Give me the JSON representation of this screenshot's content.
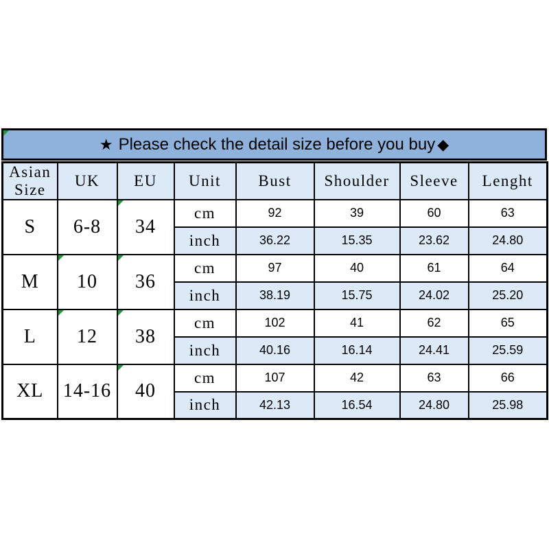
{
  "banner": {
    "star": "★",
    "text": "Please check the detail size before you buy",
    "diamond": "◆"
  },
  "colors": {
    "banner_bg": "#8FB2DC",
    "header_bg": "#DCE9F6",
    "alt_row_bg": "#DCE9F6",
    "border": "#000000",
    "excel_mark_green": "#1E9A3C",
    "text": "#000000",
    "page_bg": "#FFFFFF"
  },
  "chart_data": {
    "type": "table",
    "title": "★ Please check the detail size before you buy◆",
    "headers": [
      "Asian Size",
      "UK",
      "EU",
      "Unit",
      "Bust",
      "Shoulder",
      "Sleeve",
      "Lenght"
    ],
    "units": {
      "cm": "cm",
      "inch": "inch"
    },
    "rows": [
      {
        "size": "S",
        "uk": "6-8",
        "eu": "34",
        "cm": {
          "bust": "92",
          "shoulder": "39",
          "sleeve": "60",
          "length": "63"
        },
        "inch": {
          "bust": "36.22",
          "shoulder": "15.35",
          "sleeve": "23.62",
          "length": "24.80"
        }
      },
      {
        "size": "M",
        "uk": "10",
        "eu": "36",
        "cm": {
          "bust": "97",
          "shoulder": "40",
          "sleeve": "61",
          "length": "64"
        },
        "inch": {
          "bust": "38.19",
          "shoulder": "15.75",
          "sleeve": "24.02",
          "length": "25.20"
        }
      },
      {
        "size": "L",
        "uk": "12",
        "eu": "38",
        "cm": {
          "bust": "102",
          "shoulder": "41",
          "sleeve": "62",
          "length": "65"
        },
        "inch": {
          "bust": "40.16",
          "shoulder": "16.14",
          "sleeve": "24.41",
          "length": "25.59"
        }
      },
      {
        "size": "XL",
        "uk": "14-16",
        "eu": "40",
        "cm": {
          "bust": "107",
          "shoulder": "42",
          "sleeve": "63",
          "length": "66"
        },
        "inch": {
          "bust": "42.13",
          "shoulder": "16.54",
          "sleeve": "24.80",
          "length": "25.98"
        }
      }
    ]
  }
}
